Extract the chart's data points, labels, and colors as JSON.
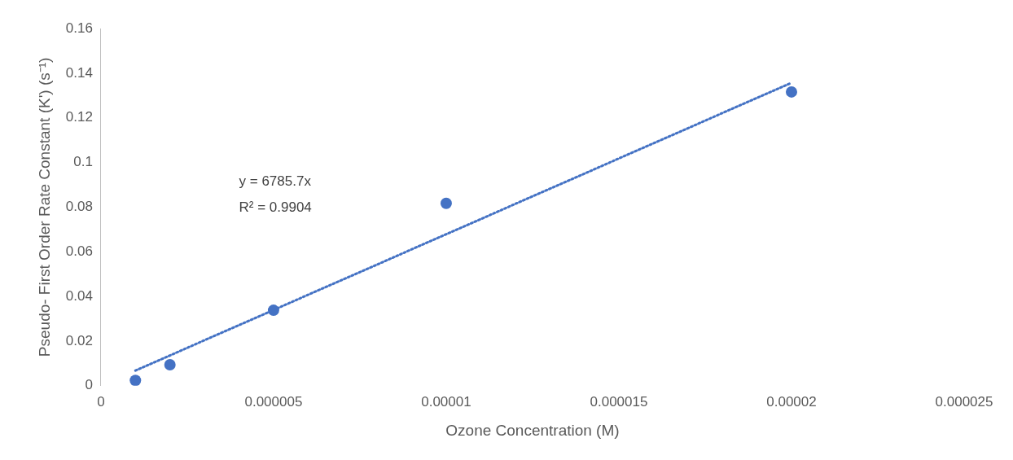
{
  "chart_data": {
    "type": "scatter",
    "xlabel": "Ozone Concentration (M)",
    "ylabel": "Pseudo- First Order Rate Constant (K') (s⁻¹)",
    "xlim": [
      0,
      2.5e-05
    ],
    "xticks": [
      0,
      {
        "value": 5e-06,
        "label": "0.000005"
      },
      {
        "value": 1e-05,
        "label": "0.00001"
      },
      {
        "value": 1.5e-05,
        "label": "0.000015"
      },
      {
        "value": 2e-05,
        "label": "0.00002"
      },
      {
        "value": 2.5e-05,
        "label": "0.000025"
      }
    ],
    "ylim": [
      0,
      0.16
    ],
    "yticks": [
      0,
      0.02,
      0.04,
      0.06,
      0.08,
      0.1,
      0.12,
      0.14,
      0.16
    ],
    "series": [
      {
        "type": "scatter",
        "color": "#4472c4",
        "marker": "circle",
        "x": [
          1e-06,
          2e-06,
          5e-06,
          1e-05,
          2e-05
        ],
        "values": [
          0.0024,
          0.0094,
          0.0338,
          0.0817,
          0.1316
        ]
      },
      {
        "type": "line",
        "color": "#4472c4",
        "line_style": "dotted",
        "marker": "none",
        "x": [
          1e-06,
          2e-05
        ],
        "values": [
          0.0068,
          0.1357
        ]
      }
    ],
    "annotations": [
      "y = 6785.7x",
      "R² = 0.9904"
    ],
    "grid": false,
    "legend": false
  }
}
